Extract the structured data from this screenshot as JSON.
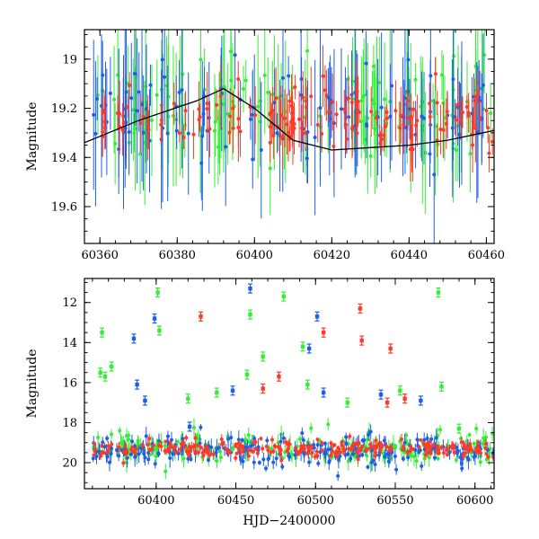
{
  "colors": {
    "green": "#33ee33",
    "blue": "#1f5fe8",
    "red": "#ff3a28",
    "model": "#000000"
  },
  "chart_data": [
    {
      "type": "scatter",
      "panel": "top",
      "xlabel": "",
      "ylabel": "Magnitude",
      "xlim": [
        60356,
        60462
      ],
      "ylim": [
        19.75,
        18.88
      ],
      "y_inverted": true,
      "xticks": [
        60360,
        60380,
        60400,
        60420,
        60440,
        60460
      ],
      "xtick_labels": [
        "60360",
        "60380",
        "60400",
        "60420",
        "60440",
        "60460"
      ],
      "yticks": [
        19.0,
        19.2,
        19.4,
        19.6
      ],
      "ytick_labels": [
        "19",
        "19.2",
        "19.4",
        "19.6"
      ],
      "series": [
        {
          "color_key": "green",
          "baseline": 19.2,
          "scatter": 0.16,
          "err": 0.22,
          "seasons": [
            [
              60358,
              60462
            ]
          ]
        },
        {
          "color_key": "blue",
          "baseline": 19.22,
          "scatter": 0.15,
          "err": 0.24,
          "seasons": [
            [
              60358,
              60462
            ]
          ]
        },
        {
          "color_key": "red",
          "baseline": 19.24,
          "scatter": 0.1,
          "err": 0.1,
          "seasons": [
            [
              60360,
              60401
            ],
            [
              60403,
              60428
            ],
            [
              60430,
              60462
            ]
          ]
        }
      ],
      "model_curve": {
        "x": [
          60356,
          60370,
          60385,
          60392,
          60400,
          60410,
          60420,
          60430,
          60440,
          60450,
          60462
        ],
        "y": [
          19.34,
          19.25,
          19.17,
          19.12,
          19.2,
          19.33,
          19.37,
          19.36,
          19.35,
          19.33,
          19.29
        ]
      }
    },
    {
      "type": "scatter",
      "panel": "bottom",
      "xlabel": "HJD−2400000",
      "ylabel": "Magnitude",
      "xlim": [
        60355,
        60612
      ],
      "ylim": [
        21.3,
        10.8
      ],
      "y_inverted": true,
      "xticks": [
        60400,
        60450,
        60500,
        60550,
        60600
      ],
      "xtick_labels": [
        "60400",
        "60450",
        "60500",
        "60550",
        "60600"
      ],
      "yticks": [
        12,
        14,
        16,
        18,
        20
      ],
      "ytick_labels": [
        "12",
        "14",
        "16",
        "18",
        "20"
      ],
      "series": [
        {
          "color_key": "green",
          "baseline": 19.3,
          "scatter": 0.6,
          "err": 0.35,
          "seasons": [
            [
              60360,
              60612
            ]
          ]
        },
        {
          "color_key": "blue",
          "baseline": 19.4,
          "scatter": 0.6,
          "err": 0.35,
          "seasons": [
            [
              60360,
              60612
            ]
          ]
        },
        {
          "color_key": "red",
          "baseline": 19.3,
          "scatter": 0.35,
          "err": 0.2,
          "seasons": [
            [
              60360,
              60612
            ]
          ]
        }
      ],
      "outliers": [
        {
          "series": "green",
          "x": 60366,
          "y": 13.5
        },
        {
          "series": "green",
          "x": 60365,
          "y": 15.5
        },
        {
          "series": "green",
          "x": 60368,
          "y": 15.7
        },
        {
          "series": "green",
          "x": 60372,
          "y": 15.2
        },
        {
          "series": "green",
          "x": 60401,
          "y": 11.5
        },
        {
          "series": "green",
          "x": 60402,
          "y": 13.4
        },
        {
          "series": "green",
          "x": 60420,
          "y": 16.8
        },
        {
          "series": "green",
          "x": 60438,
          "y": 16.5
        },
        {
          "series": "green",
          "x": 60457,
          "y": 15.6
        },
        {
          "series": "green",
          "x": 60459,
          "y": 12.6
        },
        {
          "series": "green",
          "x": 60467,
          "y": 14.7
        },
        {
          "series": "green",
          "x": 60480,
          "y": 11.7
        },
        {
          "series": "green",
          "x": 60492,
          "y": 14.2
        },
        {
          "series": "green",
          "x": 60495,
          "y": 16.1
        },
        {
          "series": "green",
          "x": 60520,
          "y": 17.0
        },
        {
          "series": "green",
          "x": 60553,
          "y": 16.4
        },
        {
          "series": "green",
          "x": 60577,
          "y": 11.5
        },
        {
          "series": "green",
          "x": 60579,
          "y": 16.2
        },
        {
          "series": "green",
          "x": 60590,
          "y": 18.3
        },
        {
          "series": "blue",
          "x": 60386,
          "y": 13.8
        },
        {
          "series": "blue",
          "x": 60388,
          "y": 16.1
        },
        {
          "series": "blue",
          "x": 60393,
          "y": 16.9
        },
        {
          "series": "blue",
          "x": 60399,
          "y": 12.8
        },
        {
          "series": "blue",
          "x": 60421,
          "y": 18.2
        },
        {
          "series": "blue",
          "x": 60448,
          "y": 16.4
        },
        {
          "series": "blue",
          "x": 60459,
          "y": 11.3
        },
        {
          "series": "blue",
          "x": 60496,
          "y": 14.3
        },
        {
          "series": "blue",
          "x": 60501,
          "y": 12.7
        },
        {
          "series": "blue",
          "x": 60505,
          "y": 16.5
        },
        {
          "series": "blue",
          "x": 60541,
          "y": 16.6
        },
        {
          "series": "blue",
          "x": 60566,
          "y": 16.9
        },
        {
          "series": "red",
          "x": 60428,
          "y": 12.7
        },
        {
          "series": "red",
          "x": 60467,
          "y": 16.3
        },
        {
          "series": "red",
          "x": 60477,
          "y": 15.7
        },
        {
          "series": "red",
          "x": 60505,
          "y": 13.5
        },
        {
          "series": "red",
          "x": 60528,
          "y": 12.3
        },
        {
          "series": "red",
          "x": 60529,
          "y": 13.9
        },
        {
          "series": "red",
          "x": 60545,
          "y": 17.0
        },
        {
          "series": "red",
          "x": 60547,
          "y": 14.3
        },
        {
          "series": "red",
          "x": 60556,
          "y": 16.8
        }
      ]
    }
  ]
}
